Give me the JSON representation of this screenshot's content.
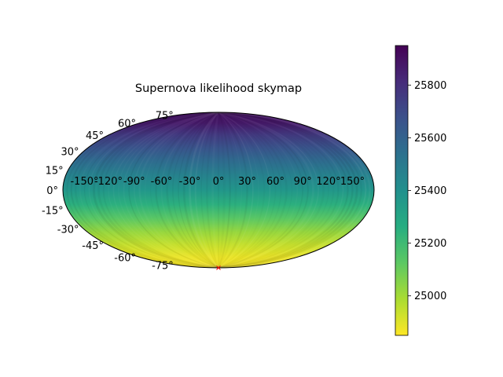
{
  "chart_data": {
    "type": "heatmap",
    "projection": "hammer (aitoff-style all-sky)",
    "title": "Supernova likelihood skymap",
    "longitude_ticks": [
      "-150°",
      "-120°",
      "-90°",
      "-60°",
      "-30°",
      "0°",
      "30°",
      "60°",
      "90°",
      "120°",
      "150°"
    ],
    "longitude_values": [
      -150,
      -120,
      -90,
      -60,
      -30,
      0,
      30,
      60,
      90,
      120,
      150
    ],
    "latitude_ticks": [
      "75°",
      "60°",
      "45°",
      "30°",
      "15°",
      "0°",
      "-15°",
      "-30°",
      "-45°",
      "-60°",
      "-75°"
    ],
    "latitude_values": [
      75,
      60,
      45,
      30,
      15,
      0,
      -15,
      -30,
      -45,
      -60,
      -75
    ],
    "colorbar": {
      "colormap": "viridis_r",
      "vmin": 24850,
      "vmax": 25950,
      "ticks": [
        25000,
        25200,
        25400,
        25600,
        25800
      ],
      "tick_labels": [
        "25000",
        "25200",
        "25400",
        "25600",
        "25800"
      ]
    },
    "field_profile_by_latitude": [
      {
        "lat": 90,
        "value": 25900
      },
      {
        "lat": 75,
        "value": 25870
      },
      {
        "lat": 60,
        "value": 25760
      },
      {
        "lat": 45,
        "value": 25660
      },
      {
        "lat": 30,
        "value": 25560
      },
      {
        "lat": 15,
        "value": 25460
      },
      {
        "lat": 0,
        "value": 25370
      },
      {
        "lat": -15,
        "value": 25250
      },
      {
        "lat": -30,
        "value": 25130
      },
      {
        "lat": -45,
        "value": 25020
      },
      {
        "lat": -60,
        "value": 24940
      },
      {
        "lat": -75,
        "value": 24880
      },
      {
        "lat": -90,
        "value": 24860
      }
    ],
    "marker": {
      "lon": 0,
      "lat": -90,
      "symbol": "x",
      "color": "#ff0000"
    },
    "grid": false
  }
}
